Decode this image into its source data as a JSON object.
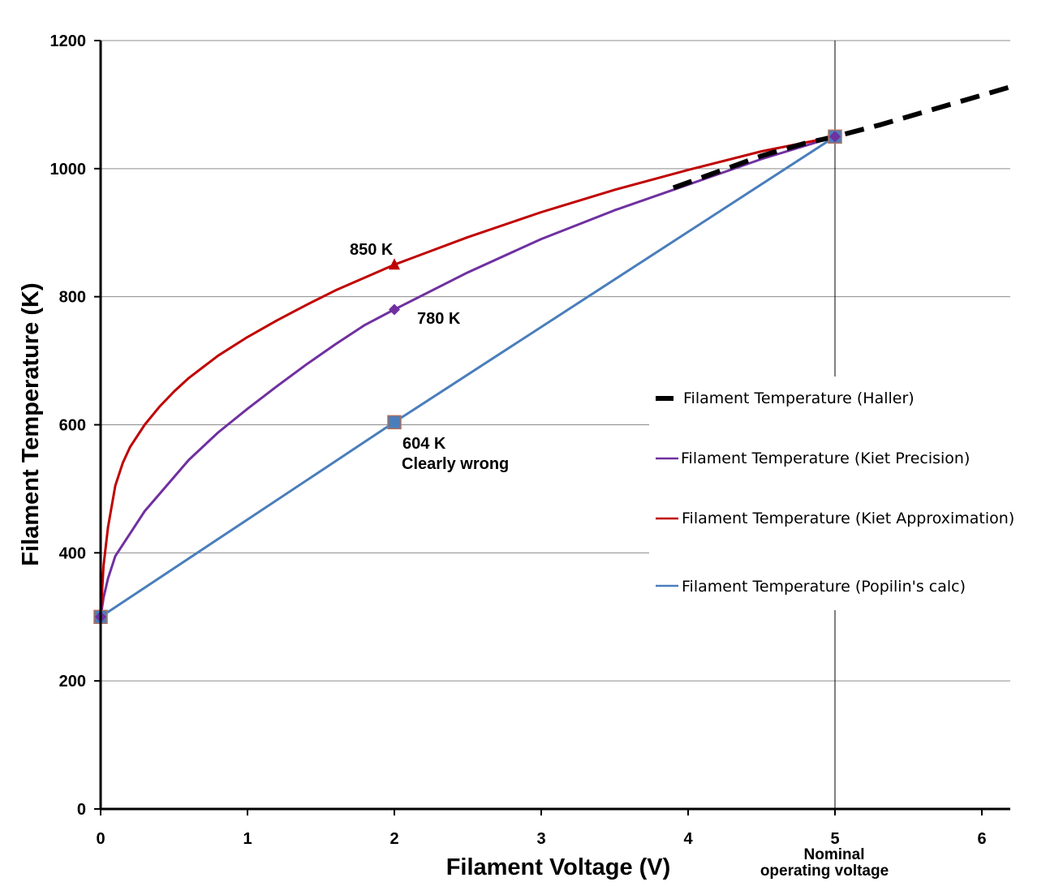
{
  "chart_data": {
    "type": "line",
    "xlabel": "Filament Voltage  (V)",
    "ylabel": "Filament Temperature   (K)",
    "xlim": [
      0,
      6.2
    ],
    "ylim": [
      0,
      1200
    ],
    "x_ticks": [
      "0",
      "1",
      "2",
      "3",
      "4",
      "5",
      "6"
    ],
    "y_ticks": [
      "0",
      "200",
      "400",
      "600",
      "800",
      "1000",
      "1200"
    ],
    "grid": "horizontal",
    "legend_position": "right",
    "vertical_line": {
      "x": 5,
      "label_line1": "Nominal",
      "label_line2": "operating  voltage"
    },
    "series": [
      {
        "name": "Filament Temperature (Haller)",
        "color": "#000000",
        "style": "dashed",
        "x": [
          3.9,
          4.2,
          4.5,
          4.8,
          5.0,
          5.3,
          5.6,
          5.9,
          6.2
        ],
        "y": [
          970,
          995,
          1020,
          1040,
          1050,
          1068,
          1088,
          1108,
          1128
        ]
      },
      {
        "name": "Filament Temperature (Kiet Precision)",
        "color": "#7030a0",
        "style": "solid",
        "marker": "diamond",
        "x": [
          0,
          0.02,
          0.05,
          0.1,
          0.2,
          0.3,
          0.45,
          0.6,
          0.8,
          1.0,
          1.2,
          1.4,
          1.6,
          1.8,
          2.0,
          2.5,
          3.0,
          3.5,
          4.0,
          4.5,
          5.0
        ],
        "y": [
          300,
          330,
          360,
          395,
          430,
          465,
          505,
          545,
          588,
          625,
          660,
          694,
          726,
          756,
          780,
          838,
          890,
          935,
          975,
          1015,
          1050
        ]
      },
      {
        "name": "Filament Temperature (Kiet Approximation)",
        "color": "#c00000",
        "style": "solid",
        "marker": "triangle",
        "x": [
          0,
          0.02,
          0.05,
          0.1,
          0.15,
          0.2,
          0.3,
          0.4,
          0.5,
          0.6,
          0.8,
          1.0,
          1.2,
          1.4,
          1.6,
          1.8,
          2.0,
          2.5,
          3.0,
          3.5,
          4.0,
          4.5,
          5.0
        ],
        "y": [
          300,
          380,
          440,
          505,
          540,
          565,
          600,
          628,
          652,
          673,
          708,
          737,
          763,
          787,
          810,
          830,
          850,
          893,
          932,
          967,
          998,
          1027,
          1050
        ]
      },
      {
        "name": "Filament Temperature (Popilin's calc)",
        "color": "#4a7ebb",
        "style": "solid",
        "marker": "square",
        "x": [
          0,
          2,
          5
        ],
        "y": [
          300,
          604,
          1050
        ]
      }
    ],
    "annotations": [
      {
        "text": "850 K",
        "x": 2,
        "y": 850
      },
      {
        "text": "780 K",
        "x": 2,
        "y": 780
      },
      {
        "text": "604 K",
        "x": 2,
        "y": 604
      },
      {
        "text": "Clearly wrong",
        "x": 2,
        "y": 604
      }
    ]
  }
}
